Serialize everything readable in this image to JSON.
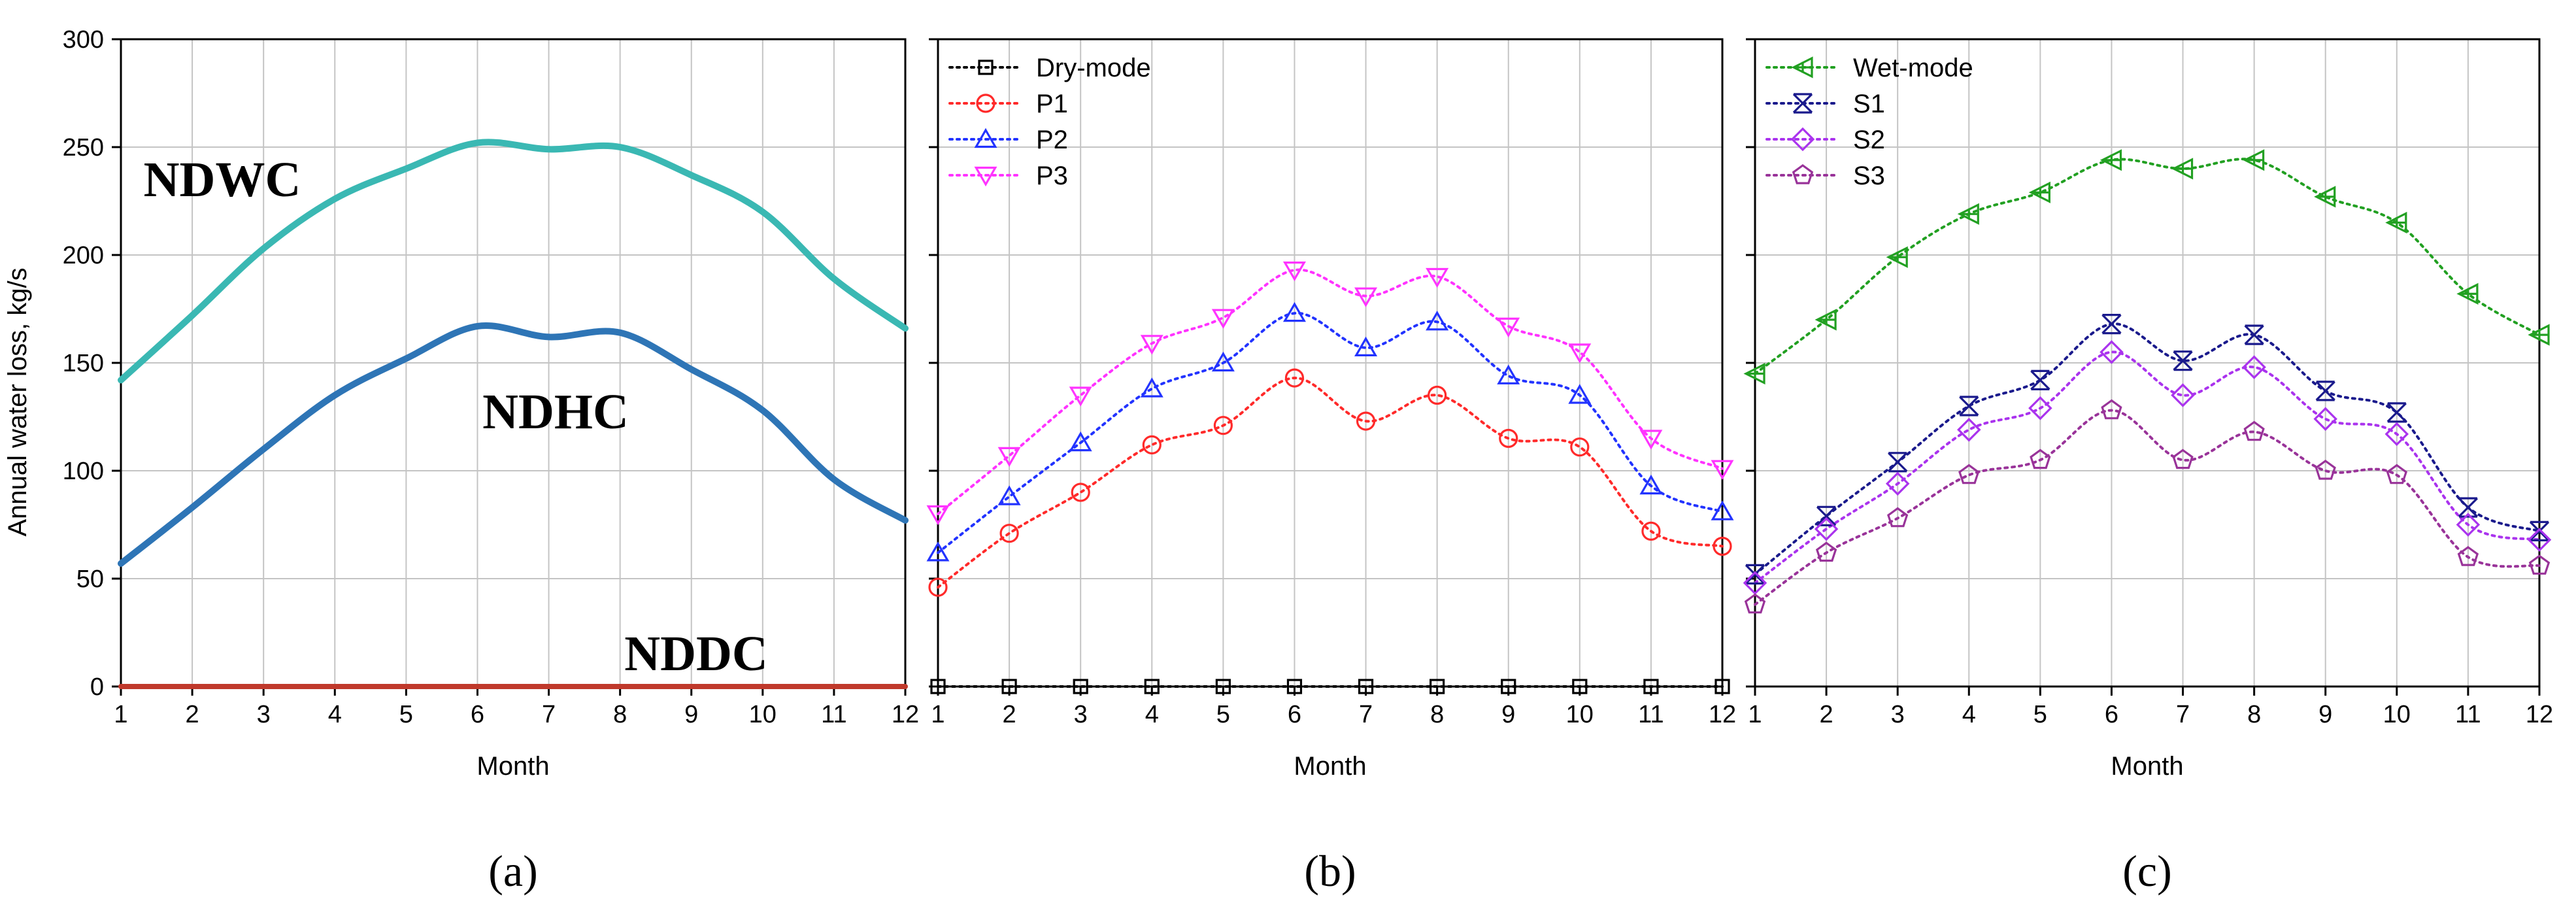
{
  "ylabel": "Annual water loss, kg/s",
  "chart_data": [
    {
      "type": "line",
      "panel_label": "(a)",
      "xlabel": "Month",
      "ylabel": "Annual water loss, kg/s",
      "xlim": [
        1,
        12
      ],
      "ylim": [
        0,
        300
      ],
      "grid": true,
      "x": [
        1,
        2,
        3,
        4,
        5,
        6,
        7,
        8,
        9,
        10,
        11,
        12
      ],
      "series": [
        {
          "name": "NDWC",
          "color": "#3ab8b3",
          "smooth": true,
          "marker": "none",
          "values": [
            142,
            172,
            203,
            226,
            240,
            252,
            249,
            250,
            237,
            220,
            189,
            166
          ]
        },
        {
          "name": "NDHC",
          "color": "#2e75b6",
          "smooth": true,
          "marker": "none",
          "values": [
            57,
            83,
            110,
            135,
            152,
            167,
            162,
            164,
            147,
            128,
            96,
            77
          ]
        },
        {
          "name": "NDDC",
          "color": "#c0392b",
          "smooth": true,
          "marker": "none",
          "values": [
            0,
            0,
            0,
            0,
            0,
            0,
            0,
            0,
            0,
            0,
            0,
            0
          ]
        }
      ],
      "annotations": [
        "NDWC",
        "NDHC",
        "NDDC"
      ]
    },
    {
      "type": "line",
      "panel_label": "(b)",
      "xlabel": "Month",
      "xlim": [
        1,
        12
      ],
      "ylim": [
        0,
        300
      ],
      "grid": true,
      "legend": "top-left",
      "x": [
        1,
        2,
        3,
        4,
        5,
        6,
        7,
        8,
        9,
        10,
        11,
        12
      ],
      "series": [
        {
          "name": "Dry-mode",
          "color": "#000000",
          "marker": "square",
          "values": [
            0,
            0,
            0,
            0,
            0,
            0,
            0,
            0,
            0,
            0,
            0,
            0
          ]
        },
        {
          "name": "P1",
          "color": "#ff2a2a",
          "marker": "circle",
          "values": [
            46,
            71,
            90,
            112,
            121,
            143,
            123,
            135,
            115,
            111,
            72,
            65
          ]
        },
        {
          "name": "P2",
          "color": "#2233ff",
          "marker": "triangle-up",
          "values": [
            62,
            88,
            113,
            138,
            150,
            173,
            157,
            169,
            144,
            135,
            93,
            81
          ]
        },
        {
          "name": "P3",
          "color": "#ff33ff",
          "marker": "triangle-down",
          "values": [
            80,
            107,
            135,
            159,
            171,
            193,
            181,
            190,
            167,
            155,
            115,
            101
          ]
        }
      ]
    },
    {
      "type": "line",
      "panel_label": "(c)",
      "xlabel": "Month",
      "xlim": [
        1,
        12
      ],
      "ylim": [
        0,
        300
      ],
      "grid": true,
      "legend": "top-left",
      "x": [
        1,
        2,
        3,
        4,
        5,
        6,
        7,
        8,
        9,
        10,
        11,
        12
      ],
      "series": [
        {
          "name": "Wet-mode",
          "color": "#22a022",
          "marker": "tri-left-cross",
          "values": [
            145,
            170,
            199,
            219,
            229,
            244,
            240,
            244,
            227,
            215,
            182,
            163
          ]
        },
        {
          "name": "S1",
          "color": "#1a1a8c",
          "marker": "x-bar",
          "values": [
            52,
            79,
            104,
            130,
            142,
            168,
            151,
            163,
            137,
            127,
            83,
            72
          ]
        },
        {
          "name": "S2",
          "color": "#aa33ee",
          "marker": "diamond",
          "values": [
            48,
            73,
            94,
            119,
            129,
            155,
            135,
            148,
            124,
            117,
            75,
            68
          ]
        },
        {
          "name": "S3",
          "color": "#993399",
          "marker": "pentagon",
          "values": [
            38,
            62,
            78,
            98,
            105,
            128,
            105,
            118,
            100,
            98,
            60,
            56
          ]
        }
      ]
    }
  ]
}
